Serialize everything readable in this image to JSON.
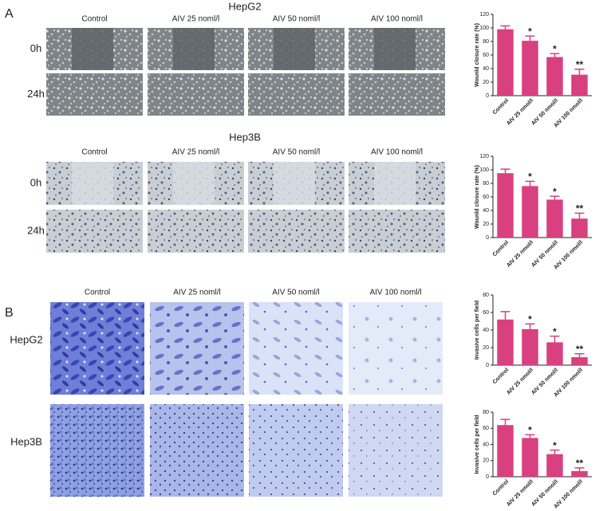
{
  "panel_labels": [
    "A",
    "B"
  ],
  "wound": [
    {
      "title": "HepG2",
      "columns": [
        "Control",
        "AIV 25 noml/l",
        "AIV 50 noml/l",
        "AIV 100 noml/l"
      ],
      "rows": [
        "0h",
        "24h"
      ]
    },
    {
      "title": "Hep3B",
      "columns": [
        "Control",
        "AIV 25 noml/l",
        "AIV 50 noml/l",
        "AIV 100 noml/l"
      ],
      "rows": [
        "0h",
        "24h"
      ]
    }
  ],
  "invasion": {
    "columns": [
      "Control",
      "AIV 25 noml/l",
      "AIV 50 noml/l",
      "AIV 100 noml/l"
    ],
    "rows": [
      "HepG2",
      "Hep3B"
    ]
  },
  "chart_data": [
    {
      "type": "bar",
      "y_label": "Wounld closure rate (%)",
      "categories": [
        "Control",
        "AIV 25 nmol/l",
        "AIV 50 nmol/l",
        "AIV 100 nmol/l"
      ],
      "values": [
        98,
        81,
        57,
        31
      ],
      "errors": [
        5,
        7,
        5,
        8
      ],
      "significance": [
        null,
        "*",
        "*",
        "**"
      ],
      "color": "#d9407f",
      "ylim": [
        0,
        120
      ],
      "yticks": [
        0,
        20,
        40,
        60,
        80,
        100,
        120
      ]
    },
    {
      "type": "bar",
      "y_label": "Wounld closure rate (%)",
      "categories": [
        "Control",
        "AIV 25 nmol/l",
        "AIV 50 nmol/l",
        "AIV 100 nmol/l"
      ],
      "values": [
        95,
        76,
        56,
        28
      ],
      "errors": [
        6,
        7,
        5,
        8
      ],
      "significance": [
        null,
        "*",
        "*",
        "**"
      ],
      "color": "#d9407f",
      "ylim": [
        0,
        120
      ],
      "yticks": [
        0,
        20,
        40,
        60,
        80,
        100,
        120
      ]
    },
    {
      "type": "bar",
      "y_label": "Invasive cells per field",
      "categories": [
        "Control",
        "AIV 25 nmol/l",
        "AIV 50 nmol/l",
        "AIV 100 nmol/l"
      ],
      "values": [
        52,
        41,
        26,
        9
      ],
      "errors": [
        9,
        6,
        7,
        4
      ],
      "significance": [
        null,
        "*",
        "*",
        "**"
      ],
      "color": "#d9407f",
      "ylim": [
        0,
        80
      ],
      "yticks": [
        0,
        20,
        40,
        60,
        80
      ]
    },
    {
      "type": "bar",
      "y_label": "Invasive cells per field",
      "categories": [
        "Control",
        "AIV 25 nmol/l",
        "AIV 50 nmol/l",
        "AIV 100 nmol/l"
      ],
      "values": [
        64,
        48,
        28,
        7
      ],
      "errors": [
        7,
        4,
        5,
        4
      ],
      "significance": [
        null,
        "*",
        "*",
        "**"
      ],
      "color": "#d9407f",
      "ylim": [
        0,
        80
      ],
      "yticks": [
        0,
        20,
        40,
        60,
        80
      ]
    }
  ]
}
